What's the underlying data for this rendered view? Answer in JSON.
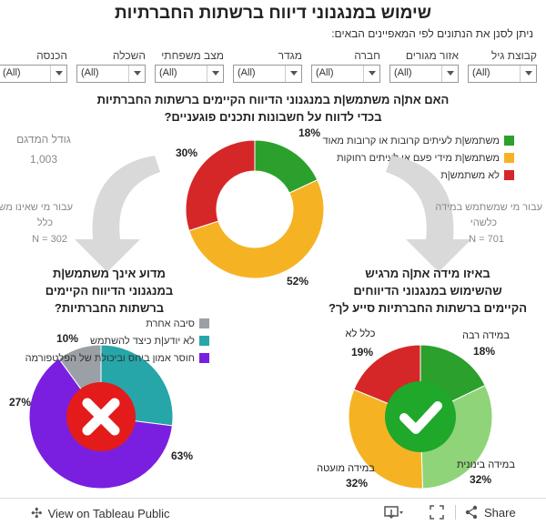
{
  "header": {
    "title": "שימוש במנגנוני דיווח ברשתות החברתיות",
    "subtitle": "ניתן לסנן את הנתונים לפי המאפיינים הבאים:"
  },
  "filters": [
    {
      "label": "קבוצת גיל",
      "value": "(All)"
    },
    {
      "label": "אזור מגורים",
      "value": "(All)"
    },
    {
      "label": "חברה",
      "value": "(All)"
    },
    {
      "label": "מגדר",
      "value": "(All)"
    },
    {
      "label": "מצב משפחתי",
      "value": "(All)"
    },
    {
      "label": "השכלה",
      "value": "(All)"
    },
    {
      "label": "הכנסה",
      "value": "(All)"
    }
  ],
  "sample": {
    "label": "גודל המדגם",
    "value": "1,003"
  },
  "left_note": {
    "line1": "עבור מי שאינו משתמש",
    "line2": "כלל",
    "n": "N = 302"
  },
  "right_note": {
    "line1": "עבור מי שמשתמש במידה",
    "line2": "כלשהי",
    "n": "N = 701"
  },
  "chart_data": [
    {
      "type": "pie",
      "variant": "donut",
      "title": "האם את|ה משתמש|ת במנגנוני הדיווח הקיימים ברשתות החברתיות בכדי לדווח על חשבונות ותכנים פוגעניים?",
      "title_line1": "האם את|ה משתמש|ת במנגנוני הדיווח הקיימים ברשתות החברתיות",
      "title_line2": "בכדי לדווח על חשבונות ותכנים פוגעניים?",
      "categories": [
        "משתמש|ת לעיתים קרובות או קרובות מאוד",
        "משתמש|ת מידי פעם או לעיתים רחוקות",
        "לא משתמש|ת"
      ],
      "values": [
        18,
        52,
        30
      ],
      "labels": [
        "18%",
        "52%",
        "30%"
      ],
      "colors": [
        "#2ca02c",
        "#f5b324",
        "#d62728"
      ],
      "legend": "top-right"
    },
    {
      "type": "pie",
      "title": "מדוע אינך משתמש|ת במנגנוני הדיווח הקיימים ברשתות החברתיות?",
      "title_line1": "מדוע אינך משתמש|ת",
      "title_line2": "במנגנוני הדיווח הקיימים",
      "title_line3": "ברשתות החברתיות?",
      "categories": [
        "סיבה אחרת",
        "לא יודע|ת כיצד להשתמש",
        "חוסר אמון ביחס וביכולת של הפלטפורמה"
      ],
      "values": [
        10,
        27,
        63
      ],
      "labels": [
        "10%",
        "27%",
        "63%"
      ],
      "colors": [
        "#9aa0a6",
        "#26a6a8",
        "#7a1fe0"
      ],
      "legend": "top"
    },
    {
      "type": "pie",
      "title": "באיזו מידה את|ה מרגיש שהשימוש במנגנוני הדיווחים הקיימים ברשתות החברתיות סייע לך?",
      "title_line1": "באיזו מידה את|ה מרגיש",
      "title_line2": "שהשימוש במנגנוני הדיווחים",
      "title_line3": "הקיימים ברשתות החברתיות סייע לך?",
      "categories": [
        "במידה רבה",
        "במידה בינונית",
        "במידה מועטה",
        "כלל לא"
      ],
      "values": [
        18,
        32,
        32,
        19
      ],
      "labels": [
        "18%",
        "32%",
        "32%",
        "19%"
      ],
      "colors": [
        "#2ca02c",
        "#90d47a",
        "#f5b324",
        "#d62728"
      ]
    }
  ],
  "footer": {
    "view_label": "View on Tableau Public",
    "share_label": "Share"
  }
}
